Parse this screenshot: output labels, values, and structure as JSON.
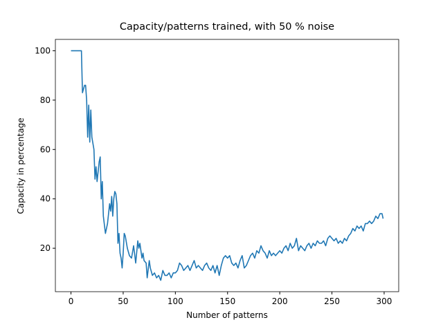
{
  "chart_data": {
    "type": "line",
    "title": "Capacity/patterns trained, with 50 % noise",
    "x_label": "Number of patterns",
    "y_label": "Capacity in percentage",
    "xlim": [
      -14.95,
      313.95
    ],
    "ylim": [
      2.4,
      104.6
    ],
    "xticks": [
      0,
      50,
      100,
      150,
      200,
      250,
      300
    ],
    "yticks": [
      20,
      40,
      60,
      80,
      100
    ],
    "x": [
      0,
      2,
      4,
      6,
      8,
      10,
      11,
      13,
      14,
      15,
      16,
      17,
      18,
      19,
      20,
      22,
      23,
      24,
      25,
      27,
      28,
      29,
      30,
      31,
      33,
      35,
      37,
      38,
      39,
      40,
      41,
      42,
      43,
      44,
      45,
      46,
      47,
      48,
      49,
      50,
      51,
      52,
      54,
      56,
      58,
      60,
      62,
      64,
      65,
      66,
      68,
      69,
      70,
      72,
      73,
      75,
      76,
      78,
      80,
      82,
      84,
      86,
      88,
      90,
      92,
      94,
      96,
      98,
      100,
      102,
      104,
      106,
      108,
      110,
      112,
      114,
      116,
      118,
      120,
      122,
      124,
      126,
      128,
      130,
      132,
      134,
      136,
      138,
      140,
      142,
      144,
      146,
      148,
      150,
      152,
      154,
      156,
      158,
      160,
      162,
      164,
      166,
      168,
      170,
      172,
      174,
      176,
      178,
      180,
      182,
      184,
      186,
      188,
      190,
      192,
      194,
      196,
      198,
      200,
      202,
      204,
      206,
      208,
      210,
      212,
      214,
      216,
      218,
      220,
      222,
      224,
      226,
      228,
      230,
      232,
      234,
      236,
      238,
      240,
      242,
      244,
      246,
      248,
      250,
      252,
      254,
      256,
      258,
      260,
      262,
      264,
      266,
      268,
      270,
      272,
      274,
      276,
      278,
      280,
      282,
      284,
      286,
      288,
      290,
      292,
      294,
      296,
      298,
      299
    ],
    "series": [
      {
        "color": "#1f77b4",
        "values": [
          100,
          100,
          100,
          100,
          100,
          100,
          83,
          86,
          86,
          80,
          65,
          78,
          63,
          76,
          65,
          60,
          48,
          53,
          47,
          55,
          57,
          40,
          47,
          33,
          26,
          30,
          38,
          35,
          41,
          33,
          40,
          43,
          42,
          38,
          22,
          26,
          18,
          16,
          12,
          18,
          26,
          25,
          20,
          17,
          16,
          21,
          14,
          23,
          20,
          22,
          16,
          18,
          15,
          14,
          8,
          15,
          12,
          9,
          10,
          8,
          9,
          7,
          11,
          9,
          9,
          10,
          8,
          10,
          10,
          11,
          14,
          13,
          11,
          12,
          13,
          11,
          13,
          15,
          12,
          13,
          12,
          11,
          13,
          14,
          12,
          11,
          13,
          10,
          13,
          9,
          13,
          16,
          17,
          16,
          17,
          14,
          13,
          14,
          12,
          15,
          17,
          12,
          13,
          15,
          17,
          18,
          16,
          19,
          18,
          21,
          19,
          18,
          16,
          19,
          17,
          18,
          17,
          18,
          19,
          18,
          20,
          21,
          19,
          22,
          20,
          21,
          24,
          19,
          21,
          20,
          19,
          21,
          22,
          20,
          22,
          21,
          23,
          22,
          22,
          23,
          21,
          24,
          25,
          24,
          23,
          24,
          22,
          23,
          22,
          24,
          23,
          25,
          26,
          28,
          27,
          29,
          28,
          29,
          27,
          30,
          30,
          31,
          30,
          31,
          33,
          32,
          34,
          34,
          32
        ]
      }
    ]
  }
}
